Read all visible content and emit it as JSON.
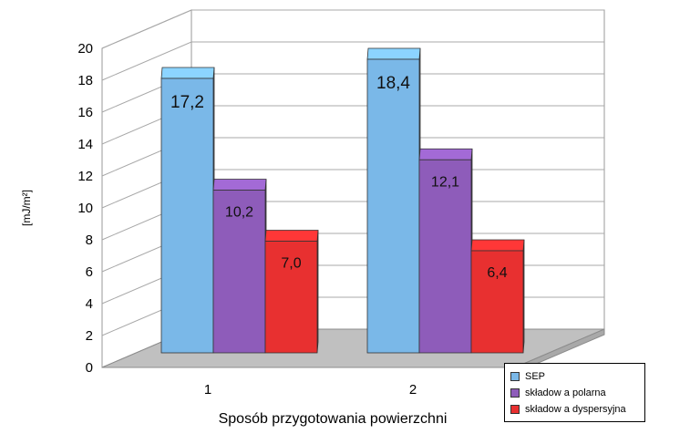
{
  "chart_data": {
    "type": "bar",
    "categories": [
      "1",
      "2"
    ],
    "series": [
      {
        "name": "SEP",
        "values": [
          17.2,
          18.4
        ],
        "labels": [
          "17,2",
          "18,4"
        ],
        "color": "#7ab8e8"
      },
      {
        "name": "składow a polarna",
        "values": [
          10.2,
          12.1
        ],
        "labels": [
          "10,2",
          "12,1"
        ],
        "color": "#8e5cba"
      },
      {
        "name": "składow a dyspersyjna",
        "values": [
          7.0,
          6.4
        ],
        "labels": [
          "7,0",
          "6,4"
        ],
        "color": "#e83030"
      }
    ],
    "xlabel": "Sposób przygotowania powierzchni",
    "ylabel": "[mJ/m²]",
    "ylim": [
      0,
      20
    ],
    "yticks": [
      "0",
      "2",
      "4",
      "6",
      "8",
      "10",
      "12",
      "14",
      "16",
      "18",
      "20"
    ],
    "grid": true,
    "legend_position": "bottom-right",
    "style": "3d"
  }
}
